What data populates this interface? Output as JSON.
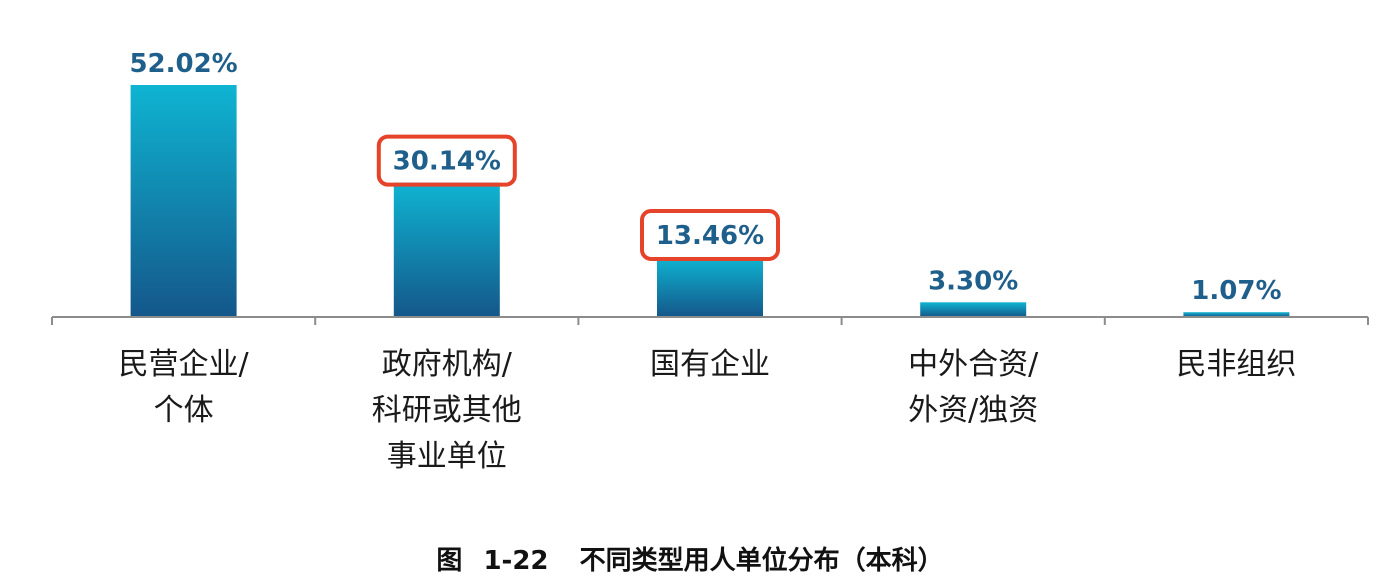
{
  "chart_data": {
    "type": "bar",
    "categories": [
      [
        "民营企业/",
        "个体"
      ],
      [
        "政府机构/",
        "科研或其他",
        "事业单位"
      ],
      [
        "国有企业"
      ],
      [
        "中外合资/",
        "外资/独资"
      ],
      [
        "民非组织"
      ]
    ],
    "values": [
      52.02,
      30.14,
      13.46,
      3.3,
      1.07
    ],
    "value_labels": [
      "52.02%",
      "30.14%",
      "13.46%",
      "3.30%",
      "1.07%"
    ],
    "highlighted": [
      false,
      true,
      true,
      false,
      false
    ],
    "ylim": [
      0,
      52.02
    ],
    "grid": false,
    "legend": "none",
    "colors": {
      "bar_top": "#0fb4d2",
      "bar_bottom": "#14578a",
      "value_label": "#1f5f8b",
      "highlight_box": "#e5432a",
      "axis": "#8c8c8c"
    }
  },
  "caption": {
    "prefix": "图",
    "number": "1-22",
    "text": "不同类型用人单位分布（本科）"
  }
}
